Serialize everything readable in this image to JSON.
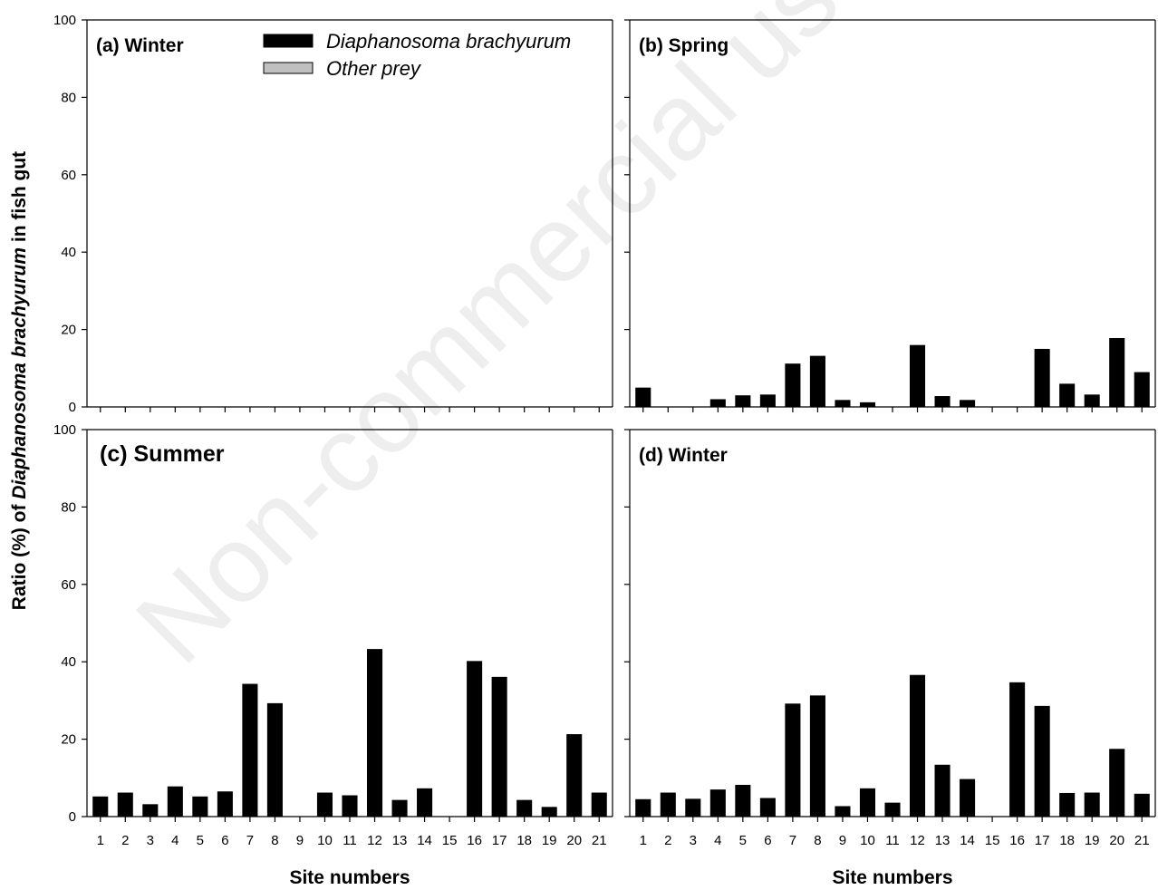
{
  "watermark": "Non-commercial use only",
  "y_axis_title": {
    "prefix": "Ratio (%) of ",
    "italic": "Diaphanosoma brachyurum",
    "suffix": "  in fish gut"
  },
  "legend": [
    {
      "label": "Diaphanosoma brachyurum",
      "color": "#000000"
    },
    {
      "label": "Other prey",
      "color": "#c0c0c0"
    }
  ],
  "chart_data": [
    {
      "type": "bar",
      "title": "(a) Winter",
      "xlabel": "",
      "ylabel": "Ratio (%) of Diaphanosoma brachyurum  in fish gut",
      "ylim": [
        0,
        100
      ],
      "yticks": [
        0,
        20,
        40,
        60,
        80,
        100
      ],
      "categories": [
        "1",
        "2",
        "3",
        "4",
        "5",
        "6",
        "7",
        "8",
        "9",
        "10",
        "11",
        "12",
        "13",
        "14",
        "15",
        "16",
        "17",
        "18",
        "19",
        "20",
        "21"
      ],
      "values": [
        0,
        0,
        0,
        0,
        0,
        0,
        0,
        0,
        0,
        0,
        0,
        0,
        0,
        0,
        0,
        0,
        0,
        0,
        0,
        0,
        0
      ]
    },
    {
      "type": "bar",
      "title": "(b) Spring",
      "xlabel": "",
      "ylim": [
        0,
        100
      ],
      "yticks": [
        0,
        20,
        40,
        60,
        80,
        100
      ],
      "categories": [
        "1",
        "2",
        "3",
        "4",
        "5",
        "6",
        "7",
        "8",
        "9",
        "10",
        "11",
        "12",
        "13",
        "14",
        "15",
        "16",
        "17",
        "18",
        "19",
        "20",
        "21"
      ],
      "values": [
        5,
        0,
        0,
        2,
        3,
        3.2,
        11.2,
        13.2,
        1.8,
        1.2,
        0,
        16,
        2.8,
        1.8,
        0,
        0,
        15,
        6,
        3.2,
        17.8,
        9
      ]
    },
    {
      "type": "bar",
      "title": "(c) Summer",
      "xlabel": "Site numbers",
      "ylim": [
        0,
        100
      ],
      "yticks": [
        0,
        20,
        40,
        60,
        80,
        100
      ],
      "categories": [
        "1",
        "2",
        "3",
        "4",
        "5",
        "6",
        "7",
        "8",
        "9",
        "10",
        "11",
        "12",
        "13",
        "14",
        "15",
        "16",
        "17",
        "18",
        "19",
        "20",
        "21"
      ],
      "values": [
        5.2,
        6.2,
        3.2,
        7.8,
        5.2,
        6.5,
        34.3,
        29.3,
        0,
        6.2,
        5.5,
        43.3,
        4.3,
        7.3,
        0,
        40.2,
        36.1,
        4.3,
        2.5,
        21.3,
        6.2
      ]
    },
    {
      "type": "bar",
      "title": "(d) Winter",
      "xlabel": "Site numbers",
      "ylim": [
        0,
        100
      ],
      "yticks": [
        0,
        20,
        40,
        60,
        80,
        100
      ],
      "categories": [
        "1",
        "2",
        "3",
        "4",
        "5",
        "6",
        "7",
        "8",
        "9",
        "10",
        "11",
        "12",
        "13",
        "14",
        "15",
        "16",
        "17",
        "18",
        "19",
        "20",
        "21"
      ],
      "values": [
        4.5,
        6.2,
        4.6,
        7,
        8.2,
        4.8,
        29.2,
        31.3,
        2.7,
        7.3,
        3.6,
        36.6,
        13.4,
        9.7,
        0,
        34.7,
        28.6,
        6.1,
        6.2,
        17.5,
        5.9
      ]
    }
  ]
}
